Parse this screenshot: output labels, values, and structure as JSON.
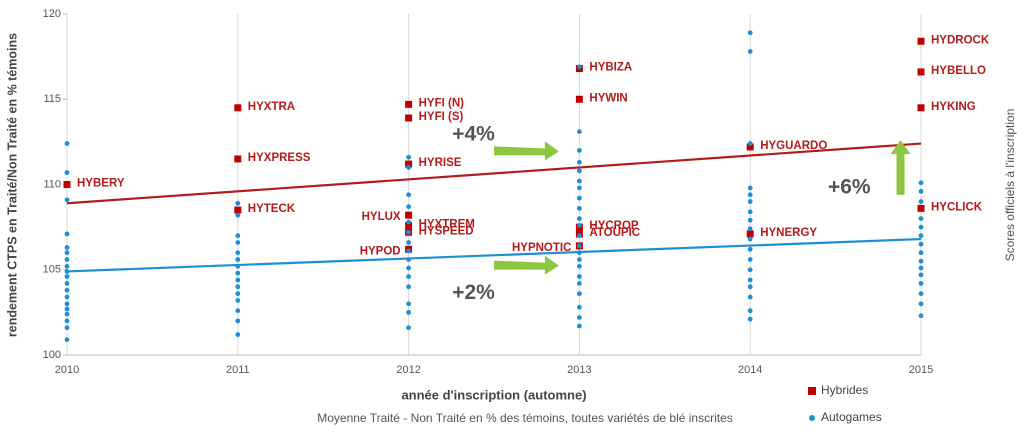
{
  "chart_data": {
    "type": "scatter",
    "x_label": "année d'inscription (automne)",
    "y_label": "rendement CTPS en Traité/Non Traité en % témoins",
    "y2_label": "Scores officiels à l'inscription",
    "caption": "Moyenne Traité - Non Traité en % des témoins, toutes variétés de blé inscrites",
    "xlim": [
      2010,
      2015
    ],
    "xticks": [
      2010,
      2011,
      2012,
      2013,
      2014,
      2015
    ],
    "ylim": [
      100,
      120
    ],
    "yticks": [
      100,
      105,
      110,
      115,
      120
    ],
    "grid": true,
    "series": [
      {
        "name": "Hybrides",
        "color": "#c00000",
        "marker": "square",
        "x": [
          2010,
          2011,
          2011,
          2011,
          2012,
          2012,
          2012,
          2012,
          2012,
          2012,
          2012,
          2013,
          2013,
          2013,
          2013,
          2013,
          2014,
          2014,
          2015,
          2015,
          2015,
          2015
        ],
        "values": [
          110.0,
          114.5,
          111.5,
          108.5,
          114.7,
          113.9,
          111.2,
          108.2,
          107.6,
          107.2,
          106.2,
          116.8,
          115.0,
          107.5,
          107.1,
          106.4,
          112.2,
          107.1,
          118.4,
          116.6,
          114.5,
          108.6
        ],
        "point_labels": [
          "HYBERY",
          "HYXTRA",
          "HYXPRESS",
          "HYTECK",
          "HYFI (N)",
          "HYFI (S)",
          "HYRISE",
          "HYLUX",
          "HYXTREM",
          "HYSPEED",
          "HYPOD",
          "HYBIZA",
          "HYWIN",
          "HYCROP",
          "ATOUPIC",
          "HYPNOTIC",
          "HYGUARDO",
          "HYNERGY",
          "HYDROCK",
          "HYBELLO",
          "HYKING",
          "HYCLICK"
        ]
      },
      {
        "name": "Autogames",
        "color": "#1e8fd5",
        "marker": "circle",
        "x": [
          2010,
          2010,
          2010,
          2010,
          2010,
          2010,
          2010,
          2010,
          2010,
          2010,
          2010,
          2010,
          2010,
          2010,
          2010,
          2010,
          2010,
          2010,
          2010,
          2011,
          2011,
          2011,
          2011,
          2011,
          2011,
          2011,
          2011,
          2011,
          2011,
          2011,
          2011,
          2011,
          2011,
          2011,
          2012,
          2012,
          2012,
          2012,
          2012,
          2012,
          2012,
          2012,
          2012,
          2012,
          2012,
          2012,
          2012,
          2012,
          2012,
          2013,
          2013,
          2013,
          2013,
          2013,
          2013,
          2013,
          2013,
          2013,
          2013,
          2013,
          2013,
          2013,
          2013,
          2013,
          2013,
          2013,
          2013,
          2013,
          2013,
          2013,
          2013,
          2014,
          2014,
          2014,
          2014,
          2014,
          2014,
          2014,
          2014,
          2014,
          2014,
          2014,
          2014,
          2014,
          2014,
          2014,
          2014,
          2014,
          2014,
          2015,
          2015,
          2015,
          2015,
          2015,
          2015,
          2015,
          2015,
          2015,
          2015,
          2015,
          2015,
          2015,
          2015,
          2015
        ],
        "values": [
          112.4,
          110.7,
          109.1,
          107.1,
          106.3,
          106.0,
          105.6,
          105.2,
          104.9,
          104.6,
          104.2,
          103.8,
          103.4,
          103.0,
          102.7,
          102.4,
          102.0,
          101.6,
          100.9,
          108.9,
          108.2,
          107.0,
          106.6,
          106.0,
          105.6,
          105.2,
          104.8,
          104.4,
          104.0,
          103.6,
          103.2,
          102.6,
          102.0,
          101.2,
          111.6,
          111.0,
          109.4,
          108.7,
          107.8,
          107.2,
          106.6,
          106.1,
          105.6,
          105.1,
          104.6,
          104.0,
          103.0,
          102.5,
          101.6,
          116.9,
          113.1,
          112.0,
          111.3,
          110.8,
          110.2,
          109.8,
          109.2,
          108.6,
          108.0,
          107.6,
          107.0,
          106.4,
          106.0,
          105.6,
          105.2,
          104.6,
          104.2,
          103.6,
          102.8,
          102.2,
          101.7,
          118.9,
          117.8,
          112.4,
          109.8,
          109.4,
          109.0,
          108.4,
          107.9,
          107.4,
          106.8,
          106.2,
          105.6,
          105.0,
          104.4,
          104.0,
          103.4,
          102.6,
          102.1,
          110.1,
          109.6,
          109.0,
          108.0,
          107.5,
          107.0,
          106.5,
          106.0,
          105.5,
          105.1,
          104.7,
          104.2,
          103.6,
          103.0,
          102.3
        ]
      }
    ],
    "trendlines": [
      {
        "color": "#b31b1b",
        "x": [
          2010,
          2015
        ],
        "values": [
          108.9,
          112.4
        ]
      },
      {
        "color": "#1e8fd5",
        "x": [
          2010,
          2015
        ],
        "values": [
          104.9,
          106.8
        ]
      }
    ],
    "annotations": [
      {
        "text": "+4%"
      },
      {
        "text": "+2%"
      },
      {
        "text": "+6%"
      }
    ]
  }
}
